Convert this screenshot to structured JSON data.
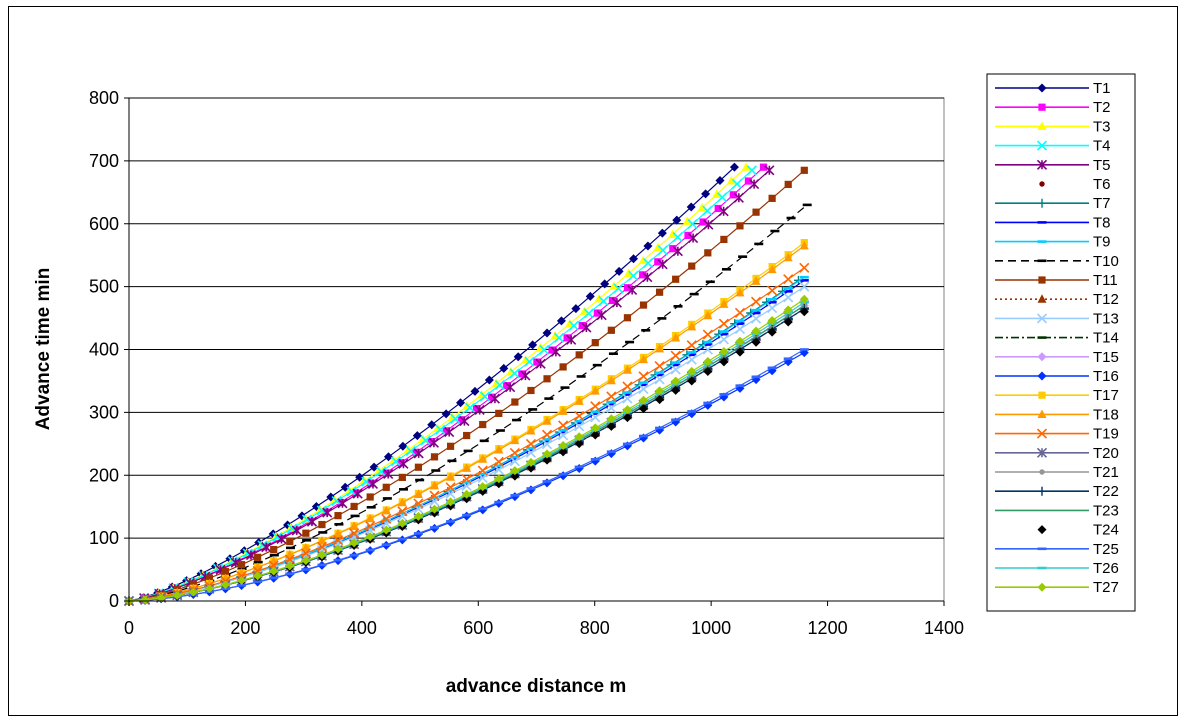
{
  "chart_data": {
    "type": "scatter",
    "title": "",
    "xlabel": "advance distance m",
    "ylabel": "Advance time min",
    "xlim": [
      0,
      1400
    ],
    "ylim": [
      0,
      800
    ],
    "x_ticks": [
      "0",
      "200",
      "400",
      "600",
      "800",
      "1000",
      "1200",
      "1400"
    ],
    "y_ticks": [
      "0",
      "100",
      "200",
      "300",
      "400",
      "500",
      "600",
      "700",
      "800"
    ],
    "grid": "horizontal major gridlines",
    "legend_position": "right",
    "series": [
      {
        "name": "T1",
        "color": "#000080",
        "marker": "diamond",
        "line": "solid",
        "x_end": 1040,
        "y_end": 690,
        "p": 1.3
      },
      {
        "name": "T2",
        "color": "#FF00FF",
        "marker": "square",
        "line": "solid",
        "x_end": 1090,
        "y_end": 690,
        "p": 1.35
      },
      {
        "name": "T3",
        "color": "#FFFF00",
        "marker": "triangle",
        "line": "solid",
        "x_end": 1060,
        "y_end": 690,
        "p": 1.33
      },
      {
        "name": "T4",
        "color": "#00FFFF",
        "marker": "x",
        "line": "solid",
        "x_end": 1070,
        "y_end": 685,
        "p": 1.33
      },
      {
        "name": "T5",
        "color": "#800080",
        "marker": "star",
        "line": "solid",
        "x_end": 1100,
        "y_end": 685,
        "p": 1.35
      },
      {
        "name": "T6",
        "color": "#800000",
        "marker": "dot",
        "line": "none",
        "x_end": 1160,
        "y_end": 685,
        "p": 1.38
      },
      {
        "name": "T7",
        "color": "#008080",
        "marker": "plus",
        "line": "solid",
        "x_end": 1150,
        "y_end": 510,
        "p": 1.45
      },
      {
        "name": "T8",
        "color": "#0000FF",
        "marker": "dash",
        "line": "solid",
        "x_end": 1160,
        "y_end": 510,
        "p": 1.45
      },
      {
        "name": "T9",
        "color": "#00CCFF",
        "marker": "dash",
        "line": "solid",
        "x_end": 1160,
        "y_end": 515,
        "p": 1.45
      },
      {
        "name": "T10",
        "color": "#000000",
        "marker": "dash",
        "line": "dashed",
        "x_end": 1165,
        "y_end": 630,
        "p": 1.4
      },
      {
        "name": "T11",
        "color": "#993300",
        "marker": "square",
        "line": "solid",
        "x_end": 1160,
        "y_end": 685,
        "p": 1.38
      },
      {
        "name": "T12",
        "color": "#993300",
        "marker": "triangle",
        "line": "dotted",
        "x_end": 1160,
        "y_end": 465,
        "p": 1.5
      },
      {
        "name": "T13",
        "color": "#99CCFF",
        "marker": "x",
        "line": "solid",
        "x_end": 1160,
        "y_end": 500,
        "p": 1.45
      },
      {
        "name": "T14",
        "color": "#003300",
        "marker": "dash",
        "line": "dashdot",
        "x_end": 1160,
        "y_end": 465,
        "p": 1.5
      },
      {
        "name": "T15",
        "color": "#CC99FF",
        "marker": "diamond",
        "line": "solid",
        "x_end": 1160,
        "y_end": 470,
        "p": 1.5
      },
      {
        "name": "T16",
        "color": "#0033FF",
        "marker": "diamond",
        "line": "solid",
        "x_end": 1160,
        "y_end": 395,
        "p": 1.55
      },
      {
        "name": "T17",
        "color": "#FFCC00",
        "marker": "square",
        "line": "solid",
        "x_end": 1160,
        "y_end": 570,
        "p": 1.42
      },
      {
        "name": "T18",
        "color": "#FF9900",
        "marker": "triangle",
        "line": "solid",
        "x_end": 1160,
        "y_end": 565,
        "p": 1.42
      },
      {
        "name": "T19",
        "color": "#FF6600",
        "marker": "x",
        "line": "solid",
        "x_end": 1160,
        "y_end": 530,
        "p": 1.45
      },
      {
        "name": "T20",
        "color": "#666699",
        "marker": "star",
        "line": "solid",
        "x_end": 1160,
        "y_end": 470,
        "p": 1.5
      },
      {
        "name": "T21",
        "color": "#969696",
        "marker": "dot",
        "line": "solid",
        "x_end": 1160,
        "y_end": 470,
        "p": 1.5
      },
      {
        "name": "T22",
        "color": "#003366",
        "marker": "plus",
        "line": "solid",
        "x_end": 1160,
        "y_end": 465,
        "p": 1.5
      },
      {
        "name": "T23",
        "color": "#339966",
        "marker": "none",
        "line": "solid",
        "x_end": 1160,
        "y_end": 470,
        "p": 1.5
      },
      {
        "name": "T24",
        "color": "#000000",
        "marker": "diamond",
        "line": "none",
        "x_end": 1160,
        "y_end": 460,
        "p": 1.5
      },
      {
        "name": "T25",
        "color": "#3366FF",
        "marker": "dash",
        "line": "solid",
        "x_end": 1160,
        "y_end": 400,
        "p": 1.55
      },
      {
        "name": "T26",
        "color": "#33CCCC",
        "marker": "dash",
        "line": "solid",
        "x_end": 1160,
        "y_end": 475,
        "p": 1.5
      },
      {
        "name": "T27",
        "color": "#99CC00",
        "marker": "diamond",
        "line": "solid",
        "x_end": 1160,
        "y_end": 480,
        "p": 1.5
      }
    ]
  }
}
